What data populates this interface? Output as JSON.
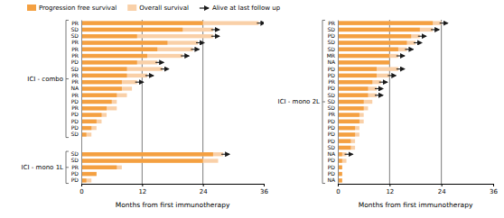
{
  "chart_data": [
    {
      "type": "bar",
      "orientation": "horizontal",
      "legend": "upper left",
      "x_label": "Months from first immunotherapy",
      "xlim": [
        0,
        36
      ],
      "xticks": [
        0,
        12,
        24,
        36
      ],
      "vlines": [
        12,
        24
      ],
      "vline_color": "#444444",
      "categories": [
        "PR",
        "SD",
        "SD",
        "PR",
        "PR",
        "PR",
        "PD",
        "SD",
        "PR",
        "PR",
        "NA",
        "PR",
        "PD",
        "PR",
        "PD",
        "PD",
        "PD",
        "SD",
        null,
        null,
        "SD",
        "SD",
        "PR",
        "PD",
        "PD"
      ],
      "series": [
        {
          "name": "Progression free survival",
          "color": "#F4A041",
          "values": [
            24,
            20,
            11,
            17,
            15,
            13,
            11,
            9,
            9,
            8,
            8,
            7,
            6,
            5,
            4,
            3,
            2,
            1,
            null,
            null,
            26,
            24,
            7,
            3,
            1
          ]
        },
        {
          "name": "Overall survival",
          "color": "#F9D0A8",
          "values": [
            35,
            26,
            26,
            23,
            22,
            20,
            15,
            16,
            13,
            11,
            10,
            9,
            7,
            7,
            5,
            4,
            3,
            2,
            null,
            null,
            28,
            27,
            8,
            3,
            2
          ]
        }
      ],
      "alive": {
        "name": "Alive at last follow up",
        "color": "#1a1a1a",
        "values": [
          true,
          true,
          true,
          true,
          true,
          true,
          true,
          true,
          true,
          true,
          false,
          false,
          false,
          false,
          false,
          false,
          false,
          false,
          null,
          null,
          true,
          false,
          false,
          false,
          false
        ]
      },
      "groups": [
        {
          "label": "ICI - combo",
          "from": 0,
          "to": 17
        },
        {
          "label": "ICI - mono 1L",
          "from": 20,
          "to": 24
        }
      ]
    },
    {
      "type": "bar",
      "orientation": "horizontal",
      "x_label": "Months from first immunotherapy",
      "xlim": [
        0,
        36
      ],
      "xticks": [
        0,
        12,
        24,
        36
      ],
      "vlines": [
        12,
        24
      ],
      "vline_color": "#444444",
      "categories": [
        "PR",
        "SD",
        "PD",
        "SD",
        "SD",
        "MR",
        "NA",
        "PD",
        "PD",
        "PR",
        "PD",
        "SD",
        "SD",
        "SD",
        "PR",
        "PD",
        "PD",
        "PD",
        "PD",
        "SD",
        "NA",
        "PD",
        "PD",
        "PD",
        "NA"
      ],
      "series": [
        {
          "color": "#F4A041",
          "values": [
            22,
            19,
            17,
            16,
            14,
            12,
            12,
            9,
            9,
            8,
            7,
            7,
            6,
            6,
            5,
            5,
            4,
            4,
            3,
            3,
            1,
            1,
            1,
            1,
            1
          ]
        },
        {
          "color": "#F9D0A8",
          "values": [
            24,
            22,
            19,
            18,
            16,
            14,
            12,
            14,
            12,
            10,
            9,
            9,
            8,
            7,
            6,
            6,
            5,
            5,
            4,
            4,
            2,
            2,
            1,
            1,
            1
          ]
        }
      ],
      "alive": {
        "color": "#1a1a1a",
        "values": [
          true,
          true,
          true,
          true,
          true,
          true,
          false,
          true,
          true,
          true,
          true,
          true,
          false,
          false,
          false,
          false,
          false,
          false,
          false,
          false,
          true,
          false,
          false,
          false,
          false
        ]
      },
      "groups": [
        {
          "label": "ICI - mono 2L",
          "from": 0,
          "to": 24
        }
      ]
    }
  ]
}
